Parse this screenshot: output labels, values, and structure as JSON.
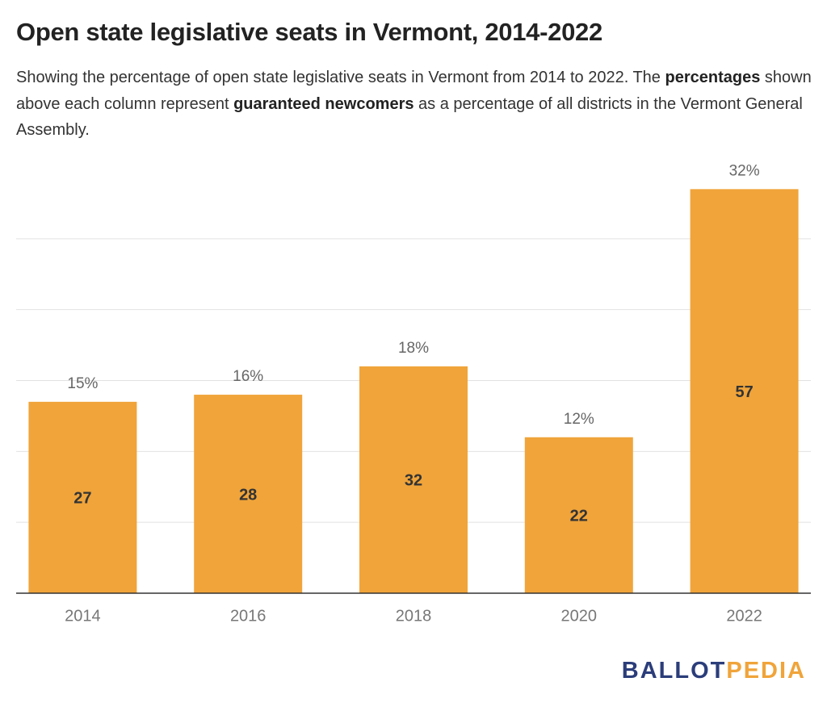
{
  "chart_data": {
    "type": "bar",
    "title": "Open state legislative seats in Vermont, 2014-2022",
    "subtitle": [
      "Showing the percentage of open state legislative seats in Vermont from 2014 to 2022. The ",
      "percentages",
      " shown above each column represent ",
      "guaranteed newcomers",
      " as a percentage of all districts in the Vermont General Assembly."
    ],
    "categories": [
      "2014",
      "2016",
      "2018",
      "2020",
      "2022"
    ],
    "values": [
      27,
      28,
      32,
      22,
      57
    ],
    "percent_labels": [
      "15%",
      "16%",
      "18%",
      "12%",
      "32%"
    ],
    "color": "#f0a43a",
    "ylim": [
      0,
      60
    ],
    "yticks": [
      0,
      10,
      20,
      30,
      40,
      50
    ],
    "grid": true,
    "logo": [
      "BALLOT",
      "PEDIA"
    ]
  }
}
